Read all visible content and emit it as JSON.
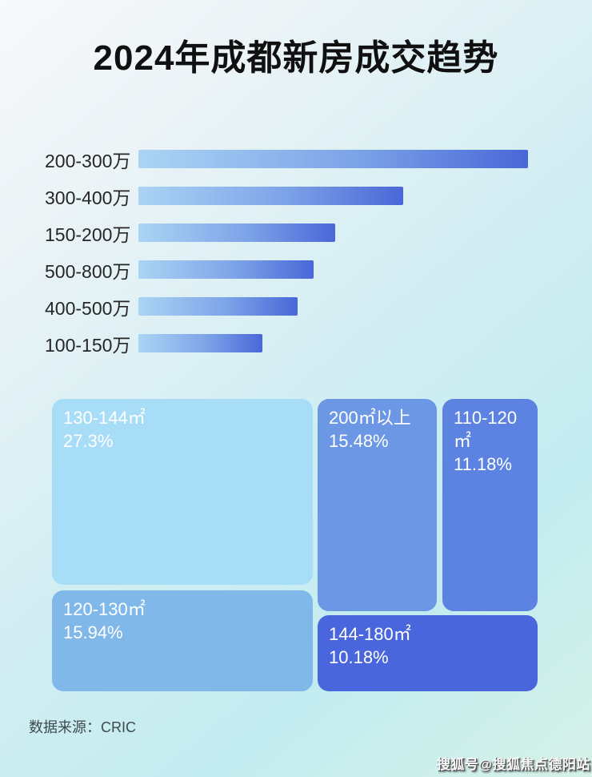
{
  "title": "2024年成都新房成交趋势",
  "source_label": "数据来源：CRIC",
  "watermark": "搜狐号@搜狐焦点德阳站",
  "colors": {
    "background_top_left": "#f8f9fb",
    "background_cyan": "#c2ecf0",
    "background_bottom_green": "#d6f2e8",
    "bar_gradient_start": "#abd4f4",
    "bar_gradient_end": "#4a67d8",
    "title_text": "#101010",
    "bar_label_text": "#262626",
    "tile_text": "#ffffff",
    "source_text": "#3d4a4c"
  },
  "chart_data": [
    {
      "type": "bar",
      "orientation": "horizontal",
      "title": "2024年成都新房成交趋势",
      "categories": [
        "200-300万",
        "300-400万",
        "150-200万",
        "500-800万",
        "400-500万",
        "100-150万"
      ],
      "values_pct_of_max": [
        100,
        67.9,
        50.5,
        44.9,
        40.9,
        31.8
      ],
      "value_labels_shown": false,
      "note": "bars unlabeled; lengths estimated relative to longest bar",
      "bar_gradient": [
        "#abd4f4",
        "#4a67d8"
      ],
      "legend": "none",
      "grid": false
    },
    {
      "type": "treemap",
      "tiles": [
        {
          "label": "130-144㎡",
          "pct": "27.3%",
          "value": 27.3,
          "color": "#a8ddf8"
        },
        {
          "label": "200㎡以上",
          "pct": "15.48%",
          "value": 15.48,
          "color": "#6b97e4"
        },
        {
          "label": "110-120㎡",
          "pct": "11.18%",
          "value": 11.18,
          "color": "#5c82e2"
        },
        {
          "label": "120-130㎡",
          "pct": "15.94%",
          "value": 15.94,
          "color": "#80b9e9"
        },
        {
          "label": "144-180㎡",
          "pct": "10.18%",
          "value": 10.18,
          "color": "#4a66dc"
        }
      ]
    }
  ]
}
